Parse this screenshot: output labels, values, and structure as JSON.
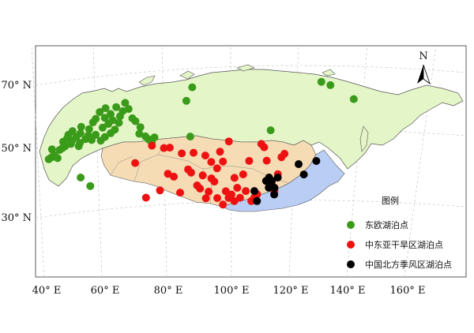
{
  "map": {
    "lon_ticks": [
      "40° E",
      "60° E",
      "80° E",
      "100° E",
      "120° E",
      "140° E",
      "160° E"
    ],
    "lat_ticks": [
      "30° N",
      "50° N",
      "70° N"
    ],
    "north_arrow_label": "N",
    "legend": {
      "title": "图例",
      "entries": [
        {
          "label": "东欧湖泊点",
          "color": "#3a9a1a"
        },
        {
          "label": "中东亚干旱区湖泊点",
          "color": "#ee1111"
        },
        {
          "label": "中国北方季风区湖泊点",
          "color": "#000000"
        }
      ]
    },
    "region_colors": {
      "eastern_europe_siberia": "#e4f5c8",
      "arid_central_asia": "#f5dcb4",
      "northern_china_monsoon": "#b9cdf5"
    }
  },
  "chart_data": {
    "type": "scatter",
    "xlabel": "",
    "ylabel": "",
    "lon_range": [
      40,
      170
    ],
    "lat_range": [
      20,
      80
    ],
    "series": [
      {
        "name": "东欧湖泊点",
        "color": "#3a9a1a",
        "points": [
          [
            41,
            52
          ],
          [
            42,
            52.5
          ],
          [
            42.5,
            55
          ],
          [
            43,
            53
          ],
          [
            44,
            52
          ],
          [
            45,
            54.5
          ],
          [
            46,
            55
          ],
          [
            46.5,
            57
          ],
          [
            47,
            55.5
          ],
          [
            48,
            58
          ],
          [
            48.5,
            59
          ],
          [
            49,
            56
          ],
          [
            49.5,
            57
          ],
          [
            50,
            60
          ],
          [
            51,
            58
          ],
          [
            51.5,
            55
          ],
          [
            52,
            56
          ],
          [
            52.5,
            59
          ],
          [
            53,
            61
          ],
          [
            54,
            57
          ],
          [
            55,
            58
          ],
          [
            55.5,
            60
          ],
          [
            56,
            56.5
          ],
          [
            57,
            62
          ],
          [
            57.5,
            58
          ],
          [
            58,
            63
          ],
          [
            59,
            56
          ],
          [
            59.5,
            65
          ],
          [
            60,
            60
          ],
          [
            60.5,
            57
          ],
          [
            61,
            63
          ],
          [
            61.5,
            66
          ],
          [
            62,
            61
          ],
          [
            62.5,
            58
          ],
          [
            63,
            64
          ],
          [
            63.5,
            62
          ],
          [
            64,
            59
          ],
          [
            65,
            66
          ],
          [
            65.5,
            61
          ],
          [
            66,
            63
          ],
          [
            67,
            64.5
          ],
          [
            68,
            67
          ],
          [
            69,
            65
          ],
          [
            70,
            62
          ],
          [
            71,
            61
          ],
          [
            72,
            57
          ],
          [
            72.5,
            59
          ],
          [
            74,
            56
          ],
          [
            75,
            55
          ],
          [
            76,
            54
          ],
          [
            77,
            55.5
          ],
          [
            51,
            45
          ],
          [
            54,
            42
          ],
          [
            88,
            66
          ],
          [
            90,
            70
          ],
          [
            89,
            55
          ],
          [
            116,
            56
          ],
          [
            132,
            70
          ],
          [
            135,
            69
          ],
          [
            143,
            65
          ]
        ]
      },
      {
        "name": "中东亚干旱区湖泊点",
        "color": "#ee1111",
        "points": [
          [
            70,
            48
          ],
          [
            73,
            37
          ],
          [
            76,
            53
          ],
          [
            78,
            39
          ],
          [
            80,
            52
          ],
          [
            81,
            44
          ],
          [
            82,
            52
          ],
          [
            83,
            43
          ],
          [
            85,
            38
          ],
          [
            86,
            50
          ],
          [
            88,
            45
          ],
          [
            89,
            44
          ],
          [
            90,
            50
          ],
          [
            91,
            40
          ],
          [
            92,
            39
          ],
          [
            93,
            43
          ],
          [
            94,
            49
          ],
          [
            95,
            38
          ],
          [
            96,
            42
          ],
          [
            97,
            41
          ],
          [
            98,
            36
          ],
          [
            99,
            50
          ],
          [
            100,
            34
          ],
          [
            101,
            38
          ],
          [
            102,
            36
          ],
          [
            103,
            37
          ],
          [
            104,
            35
          ],
          [
            105,
            39
          ],
          [
            106,
            36
          ],
          [
            107,
            43
          ],
          [
            108,
            38
          ],
          [
            109,
            47
          ],
          [
            110,
            35
          ],
          [
            111,
            36
          ],
          [
            112,
            37
          ],
          [
            113,
            52
          ],
          [
            114,
            51
          ],
          [
            115,
            47
          ],
          [
            116,
            42
          ],
          [
            117,
            40
          ],
          [
            118,
            38
          ],
          [
            119,
            43
          ],
          [
            120,
            48
          ],
          [
            121,
            49
          ],
          [
            100,
            47
          ],
          [
            102,
            53
          ],
          [
            104,
            42
          ],
          [
            94,
            36
          ],
          [
            96,
            47
          ],
          [
            98,
            45
          ]
        ]
      },
      {
        "name": "中国北方季风区湖泊点",
        "color": "#000000",
        "points": [
          [
            111,
            38
          ],
          [
            112,
            35
          ],
          [
            115,
            41
          ],
          [
            116,
            42
          ],
          [
            117,
            41
          ],
          [
            118,
            39
          ],
          [
            119,
            42
          ],
          [
            118,
            37
          ],
          [
            116,
            39
          ],
          [
            126,
            46
          ],
          [
            128,
            43
          ],
          [
            132,
            47
          ]
        ]
      }
    ]
  }
}
